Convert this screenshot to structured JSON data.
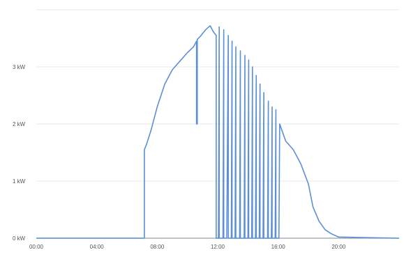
{
  "colors": {
    "line": "#5b8fd6",
    "grid": "#e8e8e8",
    "axis": "#9aa0a6",
    "tick_text": "#555555"
  },
  "chart_data": {
    "type": "line",
    "title": "",
    "xlabel": "",
    "ylabel": "",
    "grid": true,
    "legend": "none",
    "xlim": [
      0,
      24
    ],
    "ylim": [
      0,
      4
    ],
    "x_ticks": [
      {
        "value": 0,
        "label": "00:00"
      },
      {
        "value": 4,
        "label": "04:00"
      },
      {
        "value": 8,
        "label": "08:00"
      },
      {
        "value": 12,
        "label": "12:00"
      },
      {
        "value": 16,
        "label": "16:00"
      },
      {
        "value": 20,
        "label": "20:00"
      }
    ],
    "y_ticks": [
      {
        "value": 0,
        "label": "0 kW"
      },
      {
        "value": 1,
        "label": "1 kW"
      },
      {
        "value": 2,
        "label": "2 kW"
      },
      {
        "value": 3,
        "label": "3 kW"
      }
    ],
    "series": [
      {
        "x": [
          0,
          7.15,
          7.15,
          7.3,
          7.6,
          8.0,
          8.5,
          9.0,
          9.5,
          10.0,
          10.4,
          10.6,
          10.6,
          10.65,
          10.65,
          10.9,
          11.2,
          11.5,
          11.7,
          11.9,
          11.9,
          12.05,
          12.1,
          12.1,
          12.35,
          12.4,
          12.4,
          12.6,
          12.7,
          12.7,
          12.9,
          12.95,
          12.95,
          13.15,
          13.2,
          13.2,
          13.45,
          13.5,
          13.5,
          13.75,
          13.8,
          13.8,
          14.0,
          14.05,
          14.05,
          14.25,
          14.3,
          14.3,
          14.5,
          14.55,
          14.55,
          14.75,
          14.8,
          14.8,
          15.0,
          15.05,
          15.05,
          15.3,
          15.35,
          15.35,
          15.55,
          15.6,
          15.6,
          15.8,
          15.85,
          15.85,
          16.05,
          16.1,
          16.5,
          17.0,
          17.5,
          18.0,
          18.3,
          18.7,
          19.1,
          19.5,
          20.0,
          24
        ],
        "y": [
          0,
          0,
          1.55,
          1.65,
          1.9,
          2.3,
          2.7,
          2.95,
          3.1,
          3.25,
          3.35,
          3.45,
          2.0,
          2.0,
          3.48,
          3.55,
          3.65,
          3.72,
          3.62,
          3.55,
          0.0,
          0.0,
          3.7,
          0.0,
          0.0,
          3.65,
          0.0,
          0.0,
          3.55,
          0.0,
          0.0,
          3.45,
          0.0,
          0.0,
          3.35,
          0.0,
          0.0,
          3.28,
          0.0,
          0.0,
          3.2,
          0.0,
          0.0,
          3.12,
          0.0,
          0.0,
          3.0,
          0.0,
          0.0,
          2.85,
          0.0,
          0.0,
          2.7,
          0.0,
          0.0,
          2.55,
          0.0,
          0.0,
          2.4,
          0.0,
          0.0,
          2.3,
          0.0,
          0.0,
          2.25,
          0.0,
          0.0,
          2.0,
          1.7,
          1.55,
          1.3,
          0.95,
          0.55,
          0.3,
          0.15,
          0.08,
          0.02,
          0
        ]
      }
    ]
  }
}
